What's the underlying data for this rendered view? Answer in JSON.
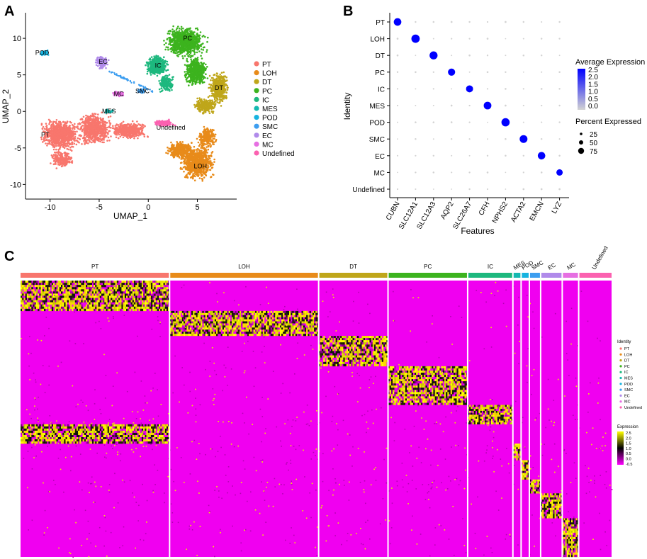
{
  "panel_labels": {
    "a": "A",
    "b": "B",
    "c": "C"
  },
  "colors": {
    "PT": "#F8766D",
    "LOH": "#E88B1A",
    "DT": "#BFA61A",
    "PC": "#3CB31E",
    "IC": "#1DB87E",
    "MES": "#14B9B0",
    "POD": "#16B3E0",
    "SMC": "#3D9EF0",
    "EC": "#B08AEA",
    "MC": "#E66FE2",
    "Undefined": "#FB61B0"
  },
  "chart_data": [
    {
      "type": "scatter",
      "title": "",
      "xlabel": "UMAP_1",
      "ylabel": "UMAP_2",
      "xlim": [
        -12.5,
        9
      ],
      "ylim": [
        -12,
        13.5
      ],
      "x_ticks": [
        -10,
        -5,
        0,
        5
      ],
      "y_ticks": [
        10,
        5,
        0,
        -5,
        -10
      ],
      "clusters": [
        {
          "name": "PT",
          "label": "PT",
          "center": [
            -10.5,
            -3.2
          ]
        },
        {
          "name": "LOH",
          "label": "LOH",
          "center": [
            5.3,
            -7.5
          ]
        },
        {
          "name": "DT",
          "label": "DT",
          "center": [
            7.2,
            3.2
          ]
        },
        {
          "name": "PC",
          "label": "PC",
          "center": [
            4.0,
            10.0
          ]
        },
        {
          "name": "IC",
          "label": "IC",
          "center": [
            1.0,
            6.3
          ]
        },
        {
          "name": "MES",
          "label": "MES",
          "center": [
            -4.0,
            0.0
          ]
        },
        {
          "name": "POD",
          "label": "POD",
          "center": [
            -10.8,
            8.0
          ]
        },
        {
          "name": "SMC",
          "label": "SMC",
          "center": [
            -0.6,
            2.8
          ]
        },
        {
          "name": "EC",
          "label": "EC",
          "center": [
            -4.6,
            6.8
          ]
        },
        {
          "name": "MC",
          "label": "MC",
          "center": [
            -3.0,
            2.4
          ]
        },
        {
          "name": "Undefined",
          "label": "Undefined",
          "center": [
            2.3,
            -2.2
          ]
        }
      ],
      "legend": [
        "PT",
        "LOH",
        "DT",
        "PC",
        "IC",
        "MES",
        "POD",
        "SMC",
        "EC",
        "MC",
        "Undefined"
      ]
    },
    {
      "type": "scatter",
      "subtype": "dotplot",
      "xlabel": "Features",
      "ylabel": "Identity",
      "features": [
        "CUBN",
        "SLC12A1",
        "SLC12A3",
        "AQP2",
        "SLC26A7",
        "CFH",
        "NPHS2",
        "ACTA2",
        "EMCN",
        "LYZ"
      ],
      "identities": [
        "PT",
        "LOH",
        "DT",
        "PC",
        "IC",
        "MES",
        "POD",
        "SMC",
        "EC",
        "MC",
        "Undefined"
      ],
      "high_expression": [
        {
          "identity": "PT",
          "feature": "CUBN",
          "pct": 70,
          "avg": 2.5
        },
        {
          "identity": "LOH",
          "feature": "SLC12A1",
          "pct": 88,
          "avg": 2.5
        },
        {
          "identity": "DT",
          "feature": "SLC12A3",
          "pct": 80,
          "avg": 2.5
        },
        {
          "identity": "PC",
          "feature": "AQP2",
          "pct": 62,
          "avg": 2.5
        },
        {
          "identity": "IC",
          "feature": "SLC26A7",
          "pct": 58,
          "avg": 2.5
        },
        {
          "identity": "MES",
          "feature": "CFH",
          "pct": 72,
          "avg": 2.5
        },
        {
          "identity": "POD",
          "feature": "NPHS2",
          "pct": 85,
          "avg": 2.5
        },
        {
          "identity": "SMC",
          "feature": "ACTA2",
          "pct": 75,
          "avg": 2.5
        },
        {
          "identity": "EC",
          "feature": "EMCN",
          "pct": 68,
          "avg": 2.5
        },
        {
          "identity": "MC",
          "feature": "LYZ",
          "pct": 45,
          "avg": 2.5
        }
      ],
      "color_legend": {
        "title": "Average Expression",
        "ticks": [
          "2.5",
          "2.0",
          "1.5",
          "1.0",
          "0.5",
          "0.0"
        ],
        "colors": [
          "#D3D3D3",
          "#0000FF"
        ]
      },
      "size_legend": {
        "title": "Percent Expressed",
        "ticks": [
          "25",
          "50",
          "75"
        ]
      }
    },
    {
      "type": "heatmap",
      "groups": [
        {
          "name": "PT",
          "label": "PT",
          "fraction": 0.29
        },
        {
          "name": "LOH",
          "label": "LOH",
          "fraction": 0.29
        },
        {
          "name": "DT",
          "label": "DT",
          "fraction": 0.135
        },
        {
          "name": "PC",
          "label": "PC",
          "fraction": 0.155
        },
        {
          "name": "IC",
          "label": "IC",
          "fraction": 0.088
        },
        {
          "name": "MES",
          "label": "MES",
          "fraction": 0.016
        },
        {
          "name": "POD",
          "label": "POD",
          "fraction": 0.016
        },
        {
          "name": "SMC",
          "label": "SMC",
          "fraction": 0.022
        },
        {
          "name": "EC",
          "label": "EC",
          "fraction": 0.042
        },
        {
          "name": "MC",
          "label": "MC",
          "fraction": 0.032
        },
        {
          "name": "Undefined",
          "label": "Undefined",
          "fraction": 0.064
        }
      ],
      "identity_legend": {
        "title": "Identity",
        "items": [
          "PT",
          "LOH",
          "DT",
          "PC",
          "IC",
          "MES",
          "POD",
          "SMC",
          "EC",
          "MC",
          "Undefined"
        ]
      },
      "expression_legend": {
        "title": "Expression",
        "ticks": [
          "2.5",
          "2.0",
          "1.5",
          "1.0",
          "0.5",
          "0.0",
          "-0.5"
        ],
        "colors": [
          "#FF00FF",
          "#000000",
          "#FFFF00"
        ]
      }
    }
  ]
}
